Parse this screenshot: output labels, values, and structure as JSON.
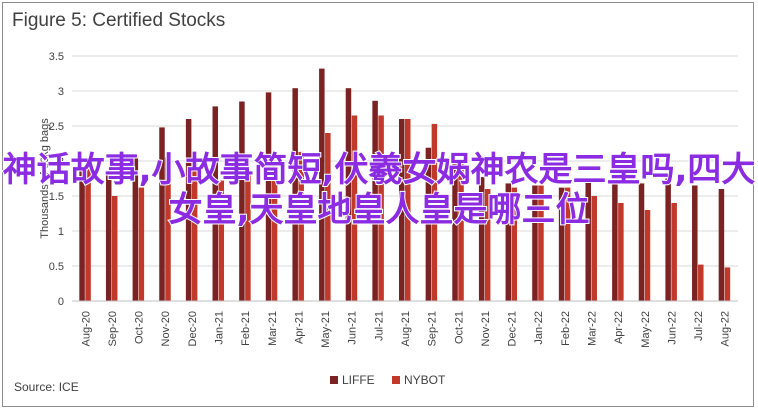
{
  "chart_data": {
    "type": "bar",
    "title": "Figure 5: Certified Stocks",
    "ylabel": "Thousands of 60kg bags",
    "xlabel": "",
    "ylim": [
      0,
      3.5
    ],
    "yticks": [
      0,
      0.5,
      1,
      1.5,
      2,
      2.5,
      3,
      3.5
    ],
    "categories": [
      "Aug-20",
      "Sep-20",
      "Oct-20",
      "Nov-20",
      "Dec-20",
      "Jan-21",
      "Feb-21",
      "Mar-21",
      "Apr-21",
      "May-21",
      "Jun-21",
      "Jul-21",
      "Aug-21",
      "Sep-21",
      "Oct-21",
      "Nov-21",
      "Dec-21",
      "Jan-22",
      "Feb-22",
      "Mar-22",
      "Apr-22",
      "May-22",
      "Jun-22",
      "Jul-22",
      "Aug-22"
    ],
    "series": [
      {
        "name": "LIFFE",
        "color": "#7b2323",
        "values": [
          1.85,
          1.85,
          2.08,
          2.48,
          2.6,
          2.78,
          2.85,
          2.98,
          3.04,
          3.32,
          3.04,
          2.86,
          2.6,
          2.19,
          1.97,
          1.77,
          1.68,
          1.65,
          1.62,
          1.72,
          1.72,
          1.68,
          1.75,
          1.65,
          1.6
        ]
      },
      {
        "name": "NYBOT",
        "color": "#c0392b",
        "values": [
          1.9,
          1.5,
          1.62,
          2.05,
          2.02,
          1.72,
          1.85,
          1.95,
          2.13,
          2.4,
          2.65,
          2.65,
          2.6,
          2.53,
          2.0,
          1.6,
          1.62,
          1.65,
          1.62,
          1.5,
          1.4,
          1.3,
          1.4,
          0.52,
          0.48
        ]
      }
    ],
    "legend_position": "bottom",
    "grid": true
  },
  "source": "Source: ICE",
  "overlay_text": "神话故事,小故事简短,伏羲女娲神农是三皇吗,四大女皇,天皇地皇人皇是哪三位"
}
